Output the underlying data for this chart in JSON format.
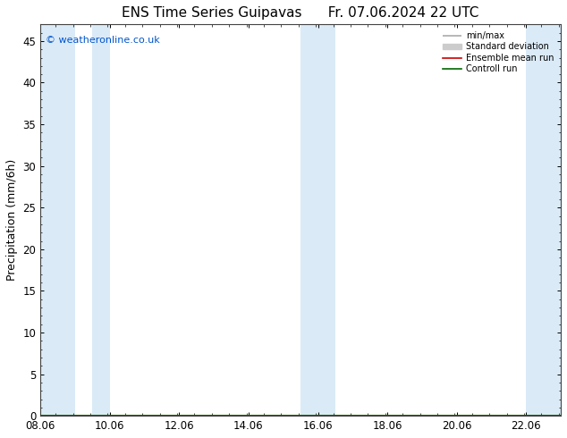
{
  "title_left": "ENS Time Series Guipavas",
  "title_right": "Fr. 07.06.2024 22 UTC",
  "ylabel": "Precipitation (mm/6h)",
  "xlabel": "",
  "xlim": [
    8.06,
    23.06
  ],
  "ylim": [
    0,
    47
  ],
  "yticks": [
    0,
    5,
    10,
    15,
    20,
    25,
    30,
    35,
    40,
    45
  ],
  "xtick_labels": [
    "08.06",
    "10.06",
    "12.06",
    "14.06",
    "16.06",
    "18.06",
    "20.06",
    "22.06"
  ],
  "xtick_values": [
    8.06,
    10.06,
    12.06,
    14.06,
    16.06,
    18.06,
    20.06,
    22.06
  ],
  "background_color": "#ffffff",
  "plot_bg_color": "#ffffff",
  "shaded_bands": [
    [
      8.06,
      9.06
    ],
    [
      9.56,
      10.06
    ],
    [
      15.56,
      16.56
    ],
    [
      22.06,
      23.06
    ]
  ],
  "band_color": "#daeaf7",
  "copyright_text": "© weatheronline.co.uk",
  "copyright_color": "#0055cc",
  "legend_items": [
    {
      "label": "min/max",
      "color": "#aaaaaa",
      "lw": 1.5
    },
    {
      "label": "Standard deviation",
      "color": "#cccccc",
      "lw": 6
    },
    {
      "label": "Ensemble mean run",
      "color": "#cc0000",
      "lw": 1.2
    },
    {
      "label": "Controll run",
      "color": "#006600",
      "lw": 1.2
    }
  ],
  "data_x": [
    8.06,
    9.06,
    10.06,
    11.06,
    12.06,
    13.06,
    14.06,
    15.06,
    16.06,
    17.06,
    18.06,
    19.06,
    20.06,
    21.06,
    22.06,
    23.06
  ],
  "data_y_zeros": [
    0,
    0,
    0,
    0,
    0,
    0,
    0,
    0,
    0,
    0,
    0,
    0,
    0,
    0,
    0,
    0
  ],
  "title_fontsize": 11,
  "tick_fontsize": 8.5,
  "ylabel_fontsize": 9
}
